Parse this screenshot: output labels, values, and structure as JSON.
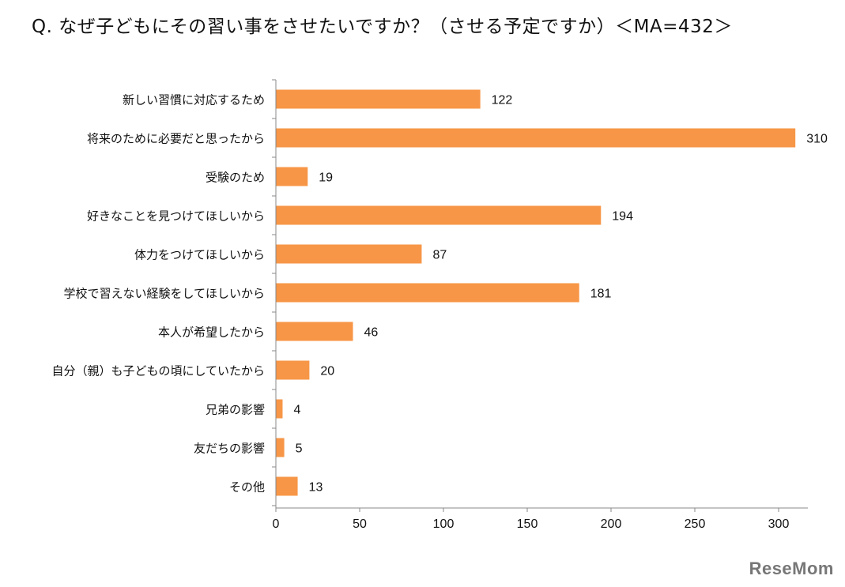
{
  "page": {
    "title": "Q. なぜ子どもにその習い事をさせたいですか？（させる予定ですか）＜MA=432＞",
    "watermark": "ReseMom"
  },
  "chart_data": {
    "type": "bar",
    "orientation": "horizontal",
    "categories": [
      "新しい習慣に対応するため",
      "将来のために必要だと思ったから",
      "受験のため",
      "好きなことを見つけてほしいから",
      "体力をつけてほしいから",
      "学校で習えない経験をしてほしいから",
      "本人が希望したから",
      "自分（親）も子どもの頃にしていたから",
      "兄弟の影響",
      "友だちの影響",
      "その他"
    ],
    "values": [
      122,
      310,
      19,
      194,
      87,
      181,
      46,
      20,
      4,
      5,
      13
    ],
    "xlim": [
      0,
      300
    ],
    "xticks": [
      0,
      50,
      100,
      150,
      200,
      250,
      300
    ],
    "bar_color": "#F79646",
    "grid": false,
    "data_labels": true
  }
}
